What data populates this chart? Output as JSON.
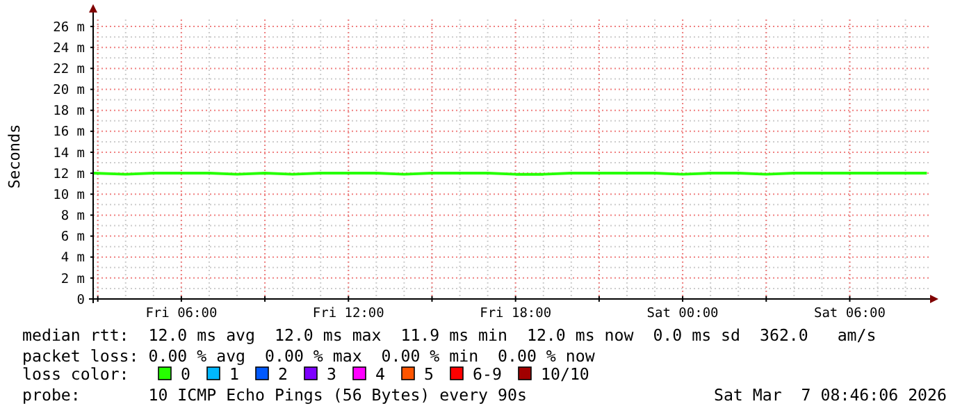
{
  "chart_data": {
    "type": "line",
    "ylabel": "Seconds",
    "legend_title": "loss color:",
    "legend": "bottom",
    "grid": true,
    "marker": "none",
    "line_style": "solid",
    "xlim": [
      "2026-03-06T02:50",
      "2026-03-07T08:50"
    ],
    "xticks": [
      {
        "value": "2026-03-06T03:00",
        "label": null
      },
      {
        "value": "2026-03-06T06:00",
        "label": "Fri 06:00"
      },
      {
        "value": "2026-03-06T09:00",
        "label": null
      },
      {
        "value": "2026-03-06T12:00",
        "label": "Fri 12:00"
      },
      {
        "value": "2026-03-06T15:00",
        "label": null
      },
      {
        "value": "2026-03-06T18:00",
        "label": "Fri 18:00"
      },
      {
        "value": "2026-03-06T21:00",
        "label": null
      },
      {
        "value": "2026-03-07T00:00",
        "label": "Sat 00:00"
      },
      {
        "value": "2026-03-07T03:00",
        "label": null
      },
      {
        "value": "2026-03-07T06:00",
        "label": "Sat 06:00"
      }
    ],
    "ylim": [
      0,
      27.2
    ],
    "yticks": [
      {
        "value": 0,
        "label": "0"
      },
      {
        "value": 2,
        "label": "2 m"
      },
      {
        "value": 4,
        "label": "4 m"
      },
      {
        "value": 6,
        "label": "6 m"
      },
      {
        "value": 8,
        "label": "8 m"
      },
      {
        "value": 10,
        "label": "10 m"
      },
      {
        "value": 12,
        "label": "12 m"
      },
      {
        "value": 14,
        "label": "14 m"
      },
      {
        "value": 16,
        "label": "16 m"
      },
      {
        "value": 18,
        "label": "18 m"
      },
      {
        "value": 20,
        "label": "20 m"
      },
      {
        "value": 22,
        "label": "22 m"
      },
      {
        "value": 24,
        "label": "24 m"
      },
      {
        "value": 26,
        "label": "26 m"
      }
    ],
    "x": [
      "2026-03-06T02:50",
      "2026-03-06T04:00",
      "2026-03-06T05:00",
      "2026-03-06T06:00",
      "2026-03-06T07:00",
      "2026-03-06T08:00",
      "2026-03-06T09:00",
      "2026-03-06T10:00",
      "2026-03-06T11:00",
      "2026-03-06T12:00",
      "2026-03-06T13:00",
      "2026-03-06T14:00",
      "2026-03-06T15:00",
      "2026-03-06T16:00",
      "2026-03-06T17:00",
      "2026-03-06T18:00",
      "2026-03-06T19:00",
      "2026-03-06T20:00",
      "2026-03-06T21:00",
      "2026-03-06T22:00",
      "2026-03-06T23:00",
      "2026-03-07T00:00",
      "2026-03-07T01:00",
      "2026-03-07T02:00",
      "2026-03-07T03:00",
      "2026-03-07T04:00",
      "2026-03-07T05:00",
      "2026-03-07T06:00",
      "2026-03-07T07:00",
      "2026-03-07T08:00",
      "2026-03-07T08:46"
    ],
    "series": [
      {
        "name": "0",
        "color": "#26ff00",
        "values": [
          12,
          11.9,
          12,
          12,
          12,
          11.9,
          12,
          11.9,
          12,
          12,
          12,
          11.9,
          12,
          12,
          12,
          11.9,
          11.9,
          12,
          12,
          12,
          12,
          11.9,
          12,
          12,
          11.9,
          12,
          12,
          12,
          12,
          12,
          12
        ]
      },
      {
        "name": "1",
        "color": "#00b8ff",
        "values": [
          null,
          null,
          null,
          null,
          null,
          null,
          null,
          null,
          null,
          null,
          null,
          null,
          null,
          null,
          null,
          null,
          null,
          null,
          null,
          null,
          null,
          null,
          null,
          null,
          null,
          null,
          null,
          null,
          null,
          null,
          null
        ]
      },
      {
        "name": "2",
        "color": "#0059ff",
        "values": [
          null,
          null,
          null,
          null,
          null,
          null,
          null,
          null,
          null,
          null,
          null,
          null,
          null,
          null,
          null,
          null,
          null,
          null,
          null,
          null,
          null,
          null,
          null,
          null,
          null,
          null,
          null,
          null,
          null,
          null,
          null
        ]
      },
      {
        "name": "3",
        "color": "#7e00ff",
        "values": [
          null,
          null,
          null,
          null,
          null,
          null,
          null,
          null,
          null,
          null,
          null,
          null,
          null,
          null,
          null,
          null,
          null,
          null,
          null,
          null,
          null,
          null,
          null,
          null,
          null,
          null,
          null,
          null,
          null,
          null,
          null
        ]
      },
      {
        "name": "4",
        "color": "#ff00ff",
        "values": [
          null,
          null,
          null,
          null,
          null,
          null,
          null,
          null,
          null,
          null,
          null,
          null,
          null,
          null,
          null,
          null,
          null,
          null,
          null,
          null,
          null,
          null,
          null,
          null,
          null,
          null,
          null,
          null,
          null,
          null,
          null
        ]
      },
      {
        "name": "5",
        "color": "#ff5500",
        "values": [
          null,
          null,
          null,
          null,
          null,
          null,
          null,
          null,
          null,
          null,
          null,
          null,
          null,
          null,
          null,
          null,
          null,
          null,
          null,
          null,
          null,
          null,
          null,
          null,
          null,
          null,
          null,
          null,
          null,
          null,
          null
        ]
      },
      {
        "name": "6-9",
        "color": "#ff0000",
        "values": [
          null,
          null,
          null,
          null,
          null,
          null,
          null,
          null,
          null,
          null,
          null,
          null,
          null,
          null,
          null,
          null,
          null,
          null,
          null,
          null,
          null,
          null,
          null,
          null,
          null,
          null,
          null,
          null,
          null,
          null,
          null
        ]
      },
      {
        "name": "10/10",
        "color": "#a10000",
        "values": [
          null,
          null,
          null,
          null,
          null,
          null,
          null,
          null,
          null,
          null,
          null,
          null,
          null,
          null,
          null,
          null,
          null,
          null,
          null,
          null,
          null,
          null,
          null,
          null,
          null,
          null,
          null,
          null,
          null,
          null,
          null
        ]
      }
    ],
    "annotations": [
      "median rtt:  12.0 ms avg  12.0 ms max  11.9 ms min  12.0 ms now  0.0 ms sd  362.0   am/s",
      "packet loss: 0.00 % avg  0.00 % max  0.00 % min  0.00 % now",
      "probe:       10 ICMP Echo Pings (56 Bytes) every 90s",
      "Sat Mar  7 08:46:06 2026"
    ]
  }
}
